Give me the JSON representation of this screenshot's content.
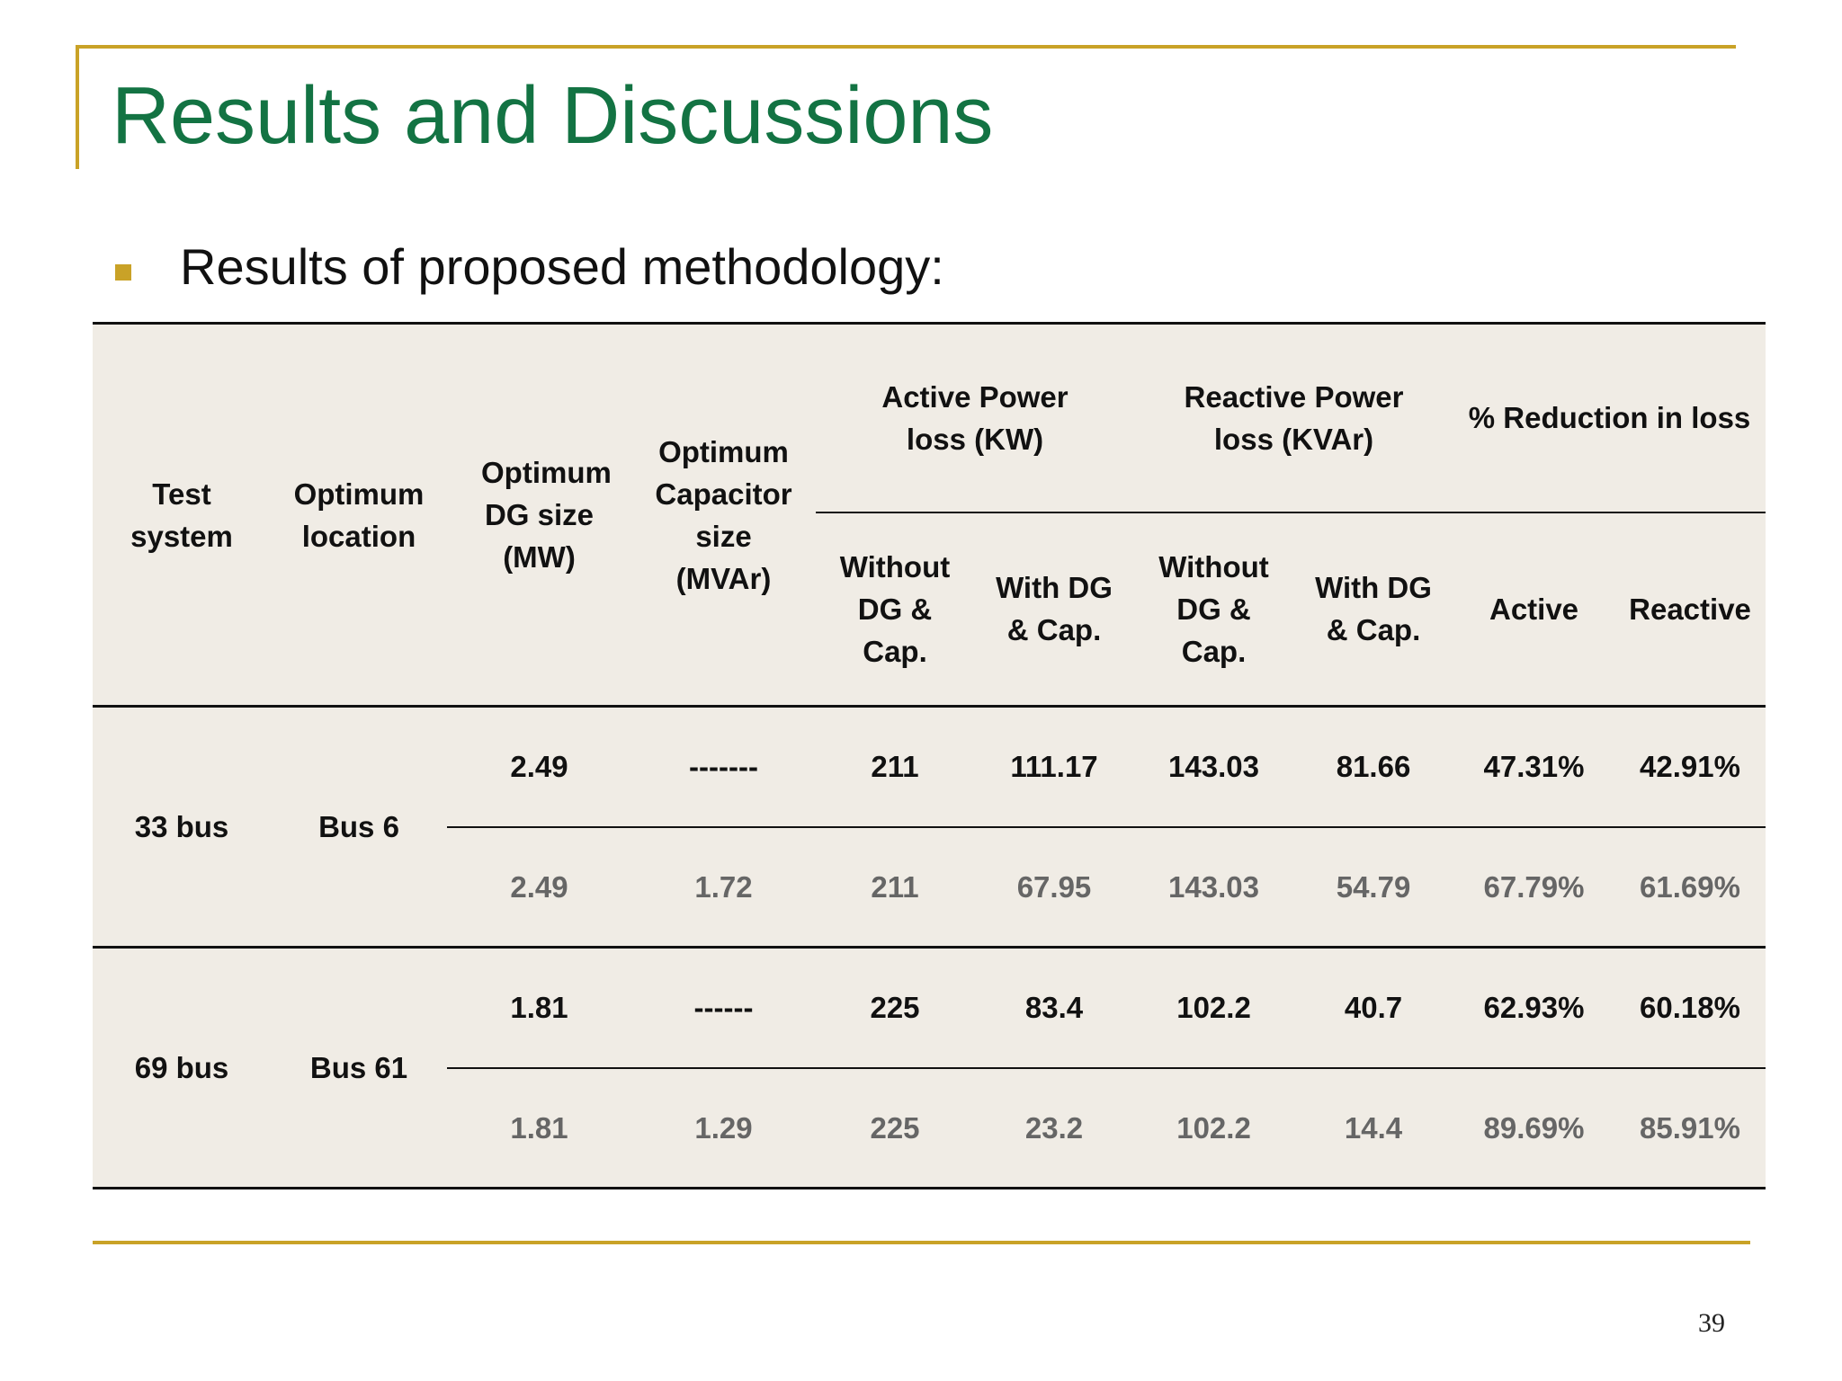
{
  "slide": {
    "title": "Results and Discussions",
    "bullet": "Results of proposed methodology:",
    "page_number": "39",
    "accent_color": "#c9a227",
    "title_color": "#137343"
  },
  "table": {
    "headers": {
      "test_system": "Test system",
      "optimum_location": "Optimum location",
      "dg_size": "Optimum DG size (MW)",
      "cap_size": "Optimum Capacitor size (MVAr)",
      "active_loss": "Active Power loss (KW)",
      "reactive_loss": "Reactive Power loss (KVAr)",
      "reduction": "% Reduction in loss",
      "without": "Without DG & Cap.",
      "with": "With DG & Cap.",
      "without_r": "Without DG & Cap.",
      "with_r": "With DG & Cap.",
      "active": "Active",
      "reactive": "Reactive"
    },
    "groups": [
      {
        "system": "33 bus",
        "location": "Bus 6",
        "rows": [
          {
            "dg": "2.49",
            "cap": "-------",
            "ap_without": "211",
            "ap_with": "111.17",
            "rp_without": "143.03",
            "rp_with": "81.66",
            "red_active": "47.31%",
            "red_reactive": "42.91%"
          },
          {
            "dg": "2.49",
            "cap": "1.72",
            "ap_without": "211",
            "ap_with": "67.95",
            "rp_without": "143.03",
            "rp_with": "54.79",
            "red_active": "67.79%",
            "red_reactive": "61.69%"
          }
        ]
      },
      {
        "system": "69 bus",
        "location": "Bus 61",
        "rows": [
          {
            "dg": "1.81",
            "cap": "------",
            "ap_without": "225",
            "ap_with": "83.4",
            "rp_without": "102.2",
            "rp_with": "40.7",
            "red_active": "62.93%",
            "red_reactive": "60.18%"
          },
          {
            "dg": "1.81",
            "cap": "1.29",
            "ap_without": "225",
            "ap_with": "23.2",
            "rp_without": "102.2",
            "rp_with": "14.4",
            "red_active": "89.69%",
            "red_reactive": "85.91%"
          }
        ]
      }
    ]
  }
}
